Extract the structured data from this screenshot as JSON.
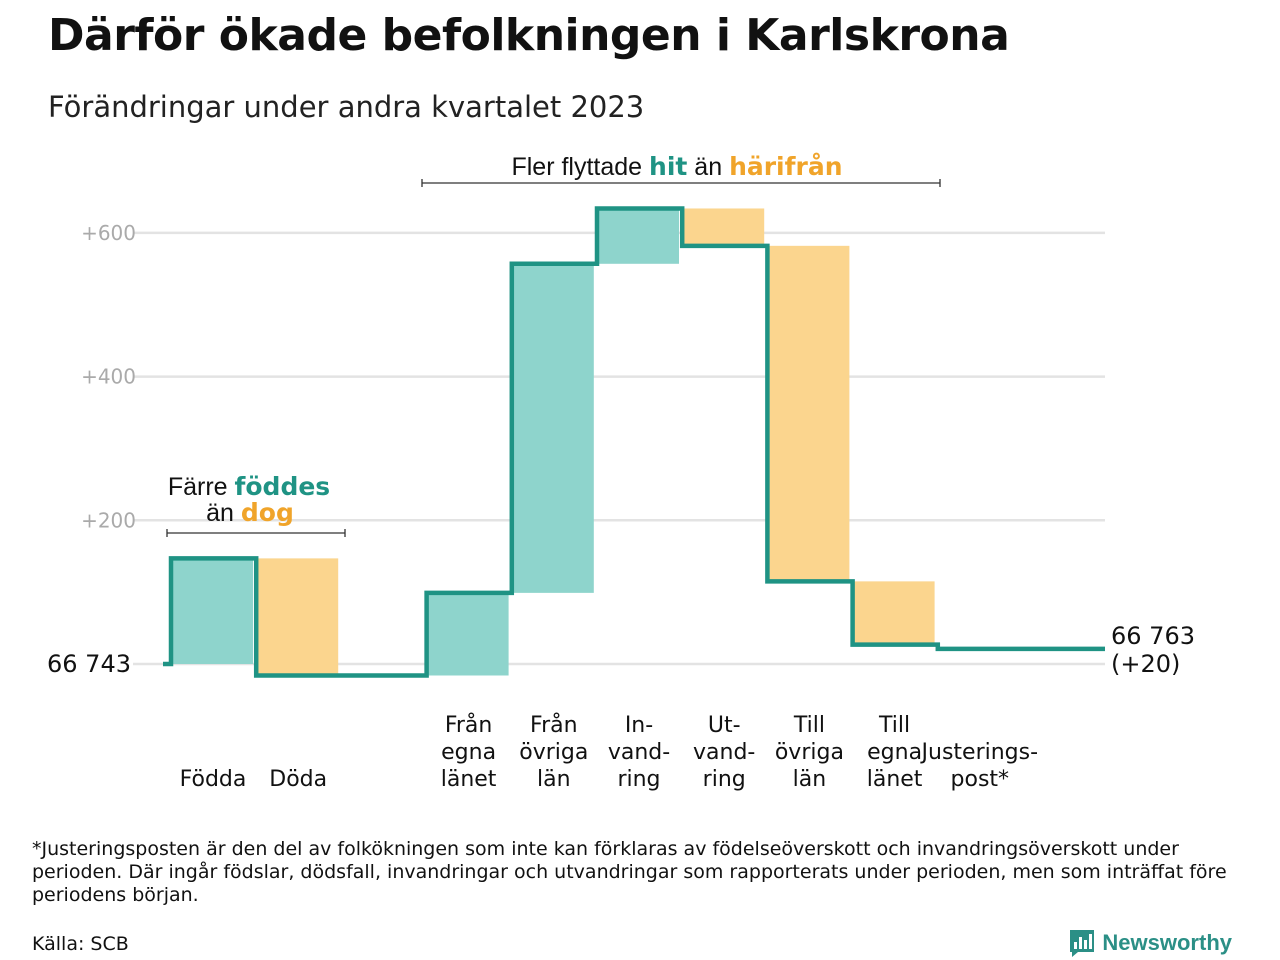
{
  "title": "Därför ökade befolkningen i Karlskrona",
  "subtitle": "Förändringar under andra kvartalet 2023",
  "chart_data": {
    "type": "waterfall",
    "start": {
      "label": "66  743",
      "value": 66743
    },
    "end": {
      "value": 66763,
      "label_line1": "66 763",
      "label_line2": "(+20)"
    },
    "y_ticks": [
      {
        "value": 200,
        "label": "+200"
      },
      {
        "value": 400,
        "label": "+400"
      },
      {
        "value": 600,
        "label": "+600"
      }
    ],
    "ylim": [
      -60,
      650
    ],
    "steps": [
      {
        "label_lines": [
          "Födda"
        ],
        "value": 147,
        "type": "in"
      },
      {
        "label_lines": [
          "Döda"
        ],
        "value": -163,
        "type": "out"
      },
      {
        "label_lines": [],
        "value": 0,
        "type": "none"
      },
      {
        "label_lines": [
          "Från",
          "egna",
          "länet"
        ],
        "value": 115,
        "type": "in"
      },
      {
        "label_lines": [
          "Från",
          "övriga",
          "län"
        ],
        "value": 458,
        "type": "in"
      },
      {
        "label_lines": [
          "In-",
          "vand-",
          "ring"
        ],
        "value": 77,
        "type": "in"
      },
      {
        "label_lines": [
          "Ut-",
          "vand-",
          "ring"
        ],
        "value": -52,
        "type": "out"
      },
      {
        "label_lines": [
          "Till",
          "övriga",
          "län"
        ],
        "value": -467,
        "type": "out"
      },
      {
        "label_lines": [
          "Till",
          "egna",
          "länet"
        ],
        "value": -88,
        "type": "out"
      },
      {
        "label_lines": [
          "Justerings-",
          "post*"
        ],
        "value": -6,
        "type": "none"
      }
    ],
    "annotations": {
      "births": {
        "pre": "Färre ",
        "hi1": "föddes",
        "mid": "än ",
        "hi2": "dog"
      },
      "migration": {
        "pre": "Fler flyttade ",
        "hi1": "hit",
        "mid": " än ",
        "hi2": "härifrån"
      }
    },
    "colors": {
      "in_fill": "#8ed4cc",
      "out_fill": "#fbd58e",
      "line": "#1f9384",
      "in_text": "#1f9384",
      "out_text": "#f0a42a",
      "grid": "#e3e3e3"
    }
  },
  "footnote": "*Justeringsposten är den del av folkökningen som inte kan förklaras av födelseöverskott och invandringsöverskott under perioden. Där ingår födslar, dödsfall, invandringar och utvandringar som rapporterats under perioden, men som inträffat före periodens början.",
  "source": "Källa: SCB",
  "logo": {
    "text": "Newsworthy",
    "icon": "newsworthy-logo-icon"
  }
}
